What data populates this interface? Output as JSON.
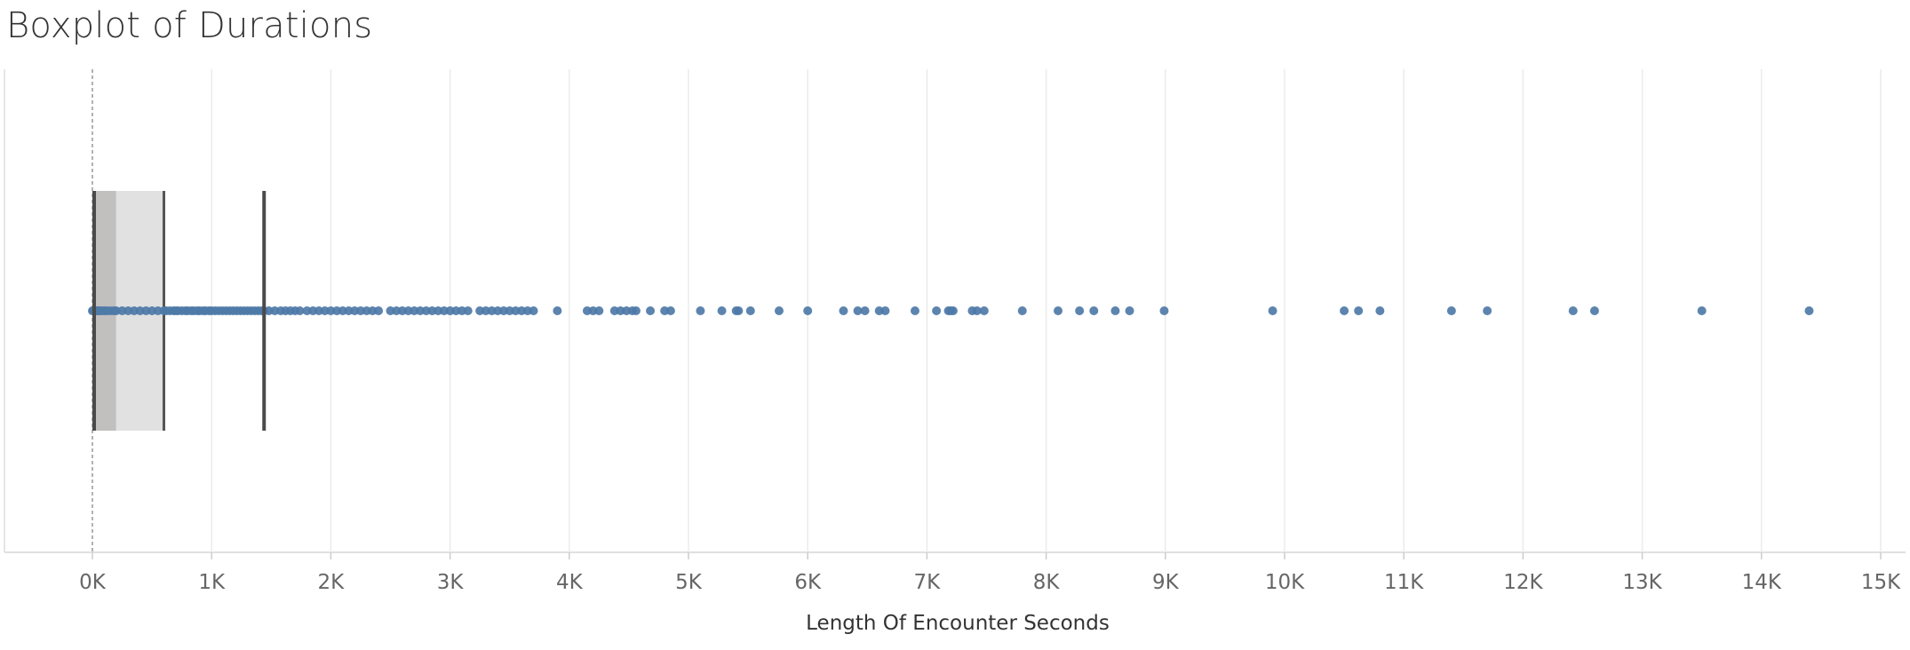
{
  "title": "Boxplot of Durations",
  "chart_data": {
    "type": "boxplot",
    "xlabel": "Length Of Encounter Seconds",
    "xlim": [
      0,
      15000
    ],
    "ticks": [
      0,
      1000,
      2000,
      3000,
      4000,
      5000,
      6000,
      7000,
      8000,
      9000,
      10000,
      11000,
      12000,
      13000,
      14000,
      15000
    ],
    "tick_labels": [
      "0K",
      "1K",
      "2K",
      "3K",
      "4K",
      "5K",
      "6K",
      "7K",
      "8K",
      "9K",
      "10K",
      "11K",
      "12K",
      "13K",
      "14K",
      "15K"
    ],
    "grid": true,
    "box": {
      "lower_whisker": 0,
      "q1": 20,
      "median": 200,
      "q3": 600,
      "upper_whisker": 1440
    },
    "points": [
      0,
      10,
      20,
      30,
      40,
      50,
      60,
      80,
      100,
      120,
      150,
      180,
      200,
      250,
      300,
      350,
      400,
      450,
      500,
      550,
      600,
      620,
      650,
      680,
      700,
      720,
      750,
      780,
      800,
      830,
      850,
      880,
      900,
      930,
      950,
      980,
      1000,
      1030,
      1060,
      1090,
      1120,
      1150,
      1180,
      1210,
      1240,
      1270,
      1300,
      1330,
      1360,
      1390,
      1420,
      1440,
      1480,
      1530,
      1580,
      1620,
      1660,
      1700,
      1740,
      1800,
      1850,
      1900,
      1950,
      2000,
      2050,
      2100,
      2150,
      2200,
      2250,
      2300,
      2350,
      2400,
      2500,
      2550,
      2600,
      2650,
      2700,
      2750,
      2800,
      2850,
      2900,
      2950,
      3000,
      3050,
      3100,
      3150,
      3250,
      3300,
      3350,
      3400,
      3450,
      3500,
      3550,
      3600,
      3650,
      3700,
      3900,
      4150,
      4200,
      4250,
      4380,
      4430,
      4480,
      4530,
      4560,
      4680,
      4800,
      4850,
      5100,
      5280,
      5400,
      5420,
      5520,
      5760,
      6000,
      6300,
      6420,
      6480,
      6600,
      6650,
      6900,
      7080,
      7180,
      7200,
      7220,
      7380,
      7420,
      7480,
      7800,
      8100,
      8280,
      8400,
      8580,
      8700,
      8990,
      9900,
      10500,
      10620,
      10800,
      11400,
      11700,
      12420,
      12600,
      13500,
      14400
    ]
  }
}
